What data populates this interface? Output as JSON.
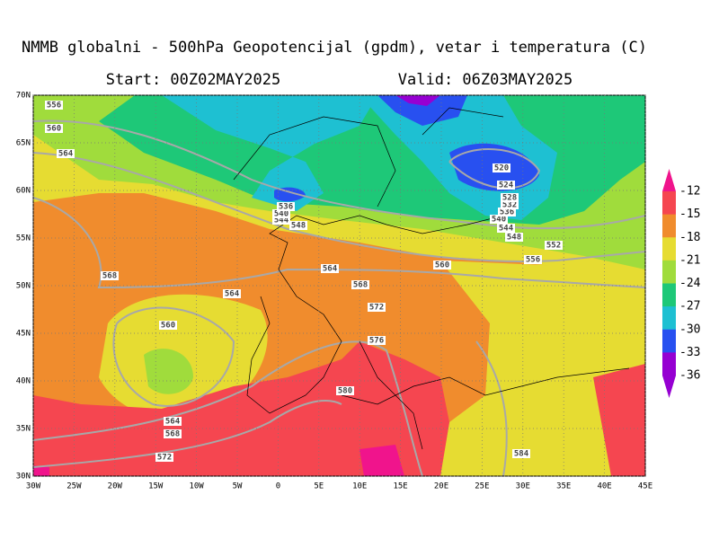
{
  "header": {
    "title": "NMMB globalni - 500hPa Geopotencijal (gpdm), vetar i temperatura (C)",
    "start": "Start: 00Z02MAY2025",
    "valid": "Valid: 06Z03MAY2025"
  },
  "map": {
    "lonlim": [
      -30,
      45
    ],
    "latlim": [
      30,
      70
    ],
    "lonticks": [
      {
        "value": -30,
        "label": "30W"
      },
      {
        "value": -25,
        "label": "25W"
      },
      {
        "value": -20,
        "label": "20W"
      },
      {
        "value": -15,
        "label": "15W"
      },
      {
        "value": -10,
        "label": "10W"
      },
      {
        "value": -5,
        "label": "5W"
      },
      0,
      {
        "value": 5,
        "label": "5E"
      },
      {
        "value": 10,
        "label": "10E"
      },
      {
        "value": 15,
        "label": "15E"
      },
      {
        "value": 20,
        "label": "20E"
      },
      {
        "value": 25,
        "label": "25E"
      },
      {
        "value": 30,
        "label": "30E"
      },
      {
        "value": 35,
        "label": "35E"
      },
      {
        "value": 40,
        "label": "40E"
      },
      {
        "value": 45,
        "label": "45E"
      }
    ],
    "latticks": [
      {
        "value": 30,
        "label": "30N"
      },
      {
        "value": 35,
        "label": "35N"
      },
      {
        "value": 40,
        "label": "40N"
      },
      {
        "value": 45,
        "label": "45N"
      },
      {
        "value": 50,
        "label": "50N"
      },
      {
        "value": 55,
        "label": "55N"
      },
      {
        "value": 60,
        "label": "60N"
      },
      {
        "value": 65,
        "label": "65N"
      },
      {
        "value": 70,
        "label": "70N"
      }
    ],
    "contour_labels": [
      556,
      560,
      564,
      568,
      564,
      560,
      564,
      568,
      572,
      548,
      544,
      540,
      536,
      564,
      568,
      572,
      576,
      580,
      584,
      560,
      556,
      552,
      548,
      544,
      540,
      536,
      532,
      528,
      524,
      520
    ]
  },
  "colorbar": {
    "labels": [
      -12,
      -15,
      -18,
      -21,
      -24,
      -27,
      -30,
      -33,
      -36
    ],
    "colors": [
      "#f0148c",
      "#f54650",
      "#f08c2d",
      "#e6dc32",
      "#a0dc3c",
      "#1ec878",
      "#1ec0d2",
      "#2850f0",
      "#9600d2",
      "#9600d2"
    ]
  }
}
